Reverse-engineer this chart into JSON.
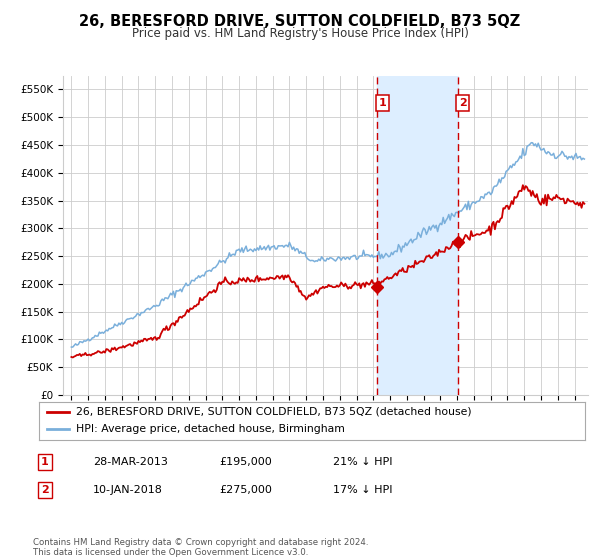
{
  "title": "26, BERESFORD DRIVE, SUTTON COLDFIELD, B73 5QZ",
  "subtitle": "Price paid vs. HM Land Registry's House Price Index (HPI)",
  "legend_line1": "26, BERESFORD DRIVE, SUTTON COLDFIELD, B73 5QZ (detached house)",
  "legend_line2": "HPI: Average price, detached house, Birmingham",
  "annotation1_label": "1",
  "annotation1_date": "28-MAR-2013",
  "annotation1_price": "£195,000",
  "annotation1_hpi": "21% ↓ HPI",
  "annotation1_year": 2013.23,
  "annotation1_value": 195000,
  "annotation2_label": "2",
  "annotation2_date": "10-JAN-2018",
  "annotation2_price": "£275,000",
  "annotation2_hpi": "17% ↓ HPI",
  "annotation2_year": 2018.03,
  "annotation2_value": 275000,
  "yticks": [
    0,
    50000,
    100000,
    150000,
    200000,
    250000,
    300000,
    350000,
    400000,
    450000,
    500000,
    550000
  ],
  "ytick_labels": [
    "£0",
    "£50K",
    "£100K",
    "£150K",
    "£200K",
    "£250K",
    "£300K",
    "£350K",
    "£400K",
    "£450K",
    "£500K",
    "£550K"
  ],
  "xmin": 1994.5,
  "xmax": 2025.8,
  "ymin": 0,
  "ymax": 575000,
  "red_color": "#cc0000",
  "blue_color": "#7aafdb",
  "shade_color": "#ddeeff",
  "vline_color": "#cc0000",
  "grid_color": "#cccccc",
  "bg_color": "#ffffff",
  "title_fontsize": 10.5,
  "subtitle_fontsize": 8.5,
  "footnote": "Contains HM Land Registry data © Crown copyright and database right 2024.\nThis data is licensed under the Open Government Licence v3.0."
}
